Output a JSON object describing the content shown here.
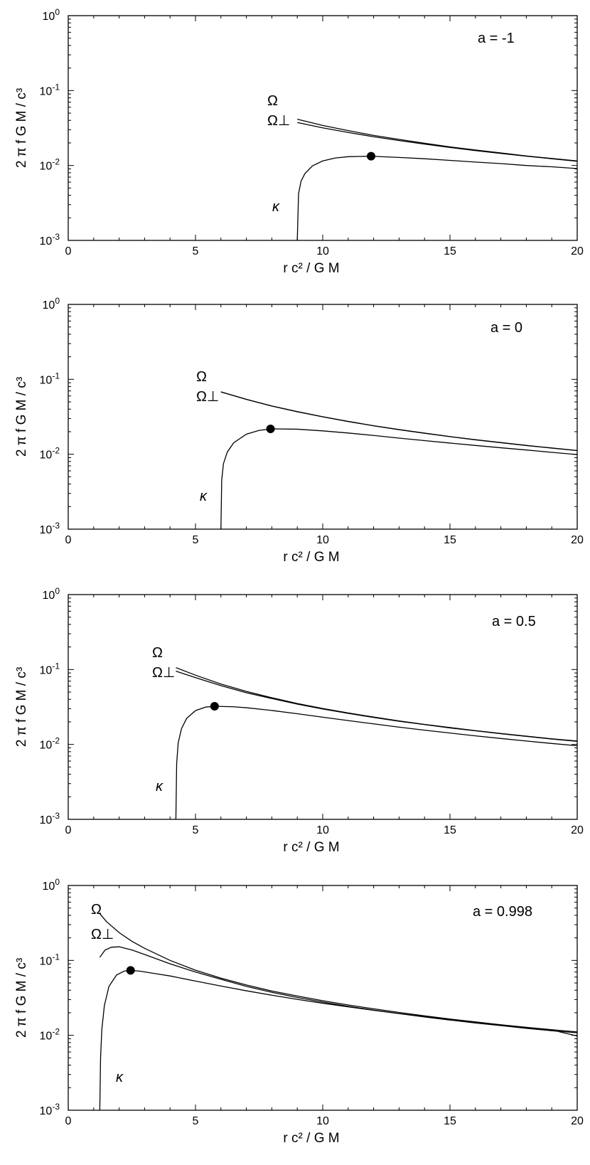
{
  "chart_data": [
    {
      "type": "line",
      "annotation": "a = -1",
      "xlabel": "r c² / G M",
      "ylabel": "2 π f G M / c³",
      "xlim": [
        0,
        20
      ],
      "ylim": [
        0.001,
        1
      ],
      "yscale": "log",
      "x_ticks": [
        0,
        5,
        10,
        15,
        20
      ],
      "y_ticks": [
        0.001,
        0.01,
        0.1,
        1
      ],
      "y_tick_labels": [
        [
          "10",
          "-3"
        ],
        [
          "10",
          "-2"
        ],
        [
          "10",
          "-1"
        ],
        [
          "10",
          "0"
        ]
      ],
      "grid": false,
      "curve_labels": {
        "omega": "Ω",
        "omega_perp": "Ω⊥",
        "kappa": "κ"
      },
      "series": [
        {
          "name": "Ω",
          "x": [
            9.0,
            10,
            11,
            12,
            13,
            14,
            15,
            16,
            17,
            18,
            19,
            20
          ],
          "values": [
            0.0415,
            0.0342,
            0.0292,
            0.0252,
            0.0223,
            0.0198,
            0.0177,
            0.0161,
            0.0147,
            0.0134,
            0.0124,
            0.0115
          ]
        },
        {
          "name": "Ω⊥",
          "x": [
            9.0,
            10,
            11,
            12,
            13,
            14,
            15,
            16,
            17,
            18,
            19,
            20
          ],
          "values": [
            0.0375,
            0.0318,
            0.0276,
            0.0242,
            0.0215,
            0.0193,
            0.0174,
            0.0158,
            0.0145,
            0.0133,
            0.0123,
            0.0114
          ]
        },
        {
          "name": "κ",
          "x": [
            9.0,
            9.05,
            9.15,
            9.3,
            9.6,
            10,
            10.5,
            11,
            11.9,
            13,
            14,
            15,
            16,
            17,
            18,
            19,
            20
          ],
          "values": [
            0.001,
            0.0042,
            0.0062,
            0.0078,
            0.0099,
            0.0115,
            0.0126,
            0.0131,
            0.0133,
            0.0128,
            0.0123,
            0.0117,
            0.0111,
            0.0106,
            0.01,
            0.0096,
            0.0091
          ]
        }
      ],
      "marker": {
        "x": 11.9,
        "y": 0.0133
      }
    },
    {
      "type": "line",
      "annotation": "a = 0",
      "xlabel": "r c² / G M",
      "ylabel": "2 π f G M / c³",
      "xlim": [
        0,
        20
      ],
      "ylim": [
        0.001,
        1
      ],
      "yscale": "log",
      "x_ticks": [
        0,
        5,
        10,
        15,
        20
      ],
      "y_ticks": [
        0.001,
        0.01,
        0.1,
        1
      ],
      "y_tick_labels": [
        [
          "10",
          "-3"
        ],
        [
          "10",
          "-2"
        ],
        [
          "10",
          "-1"
        ],
        [
          "10",
          "0"
        ]
      ],
      "grid": false,
      "curve_labels": {
        "omega": "Ω",
        "omega_perp": "Ω⊥",
        "kappa": "κ"
      },
      "series": [
        {
          "name": "Ω",
          "x": [
            6,
            7,
            8,
            9,
            10,
            11,
            12,
            13,
            14,
            15,
            16,
            17,
            18,
            19,
            20
          ],
          "values": [
            0.068,
            0.054,
            0.044,
            0.037,
            0.0316,
            0.0274,
            0.024,
            0.0213,
            0.0191,
            0.0172,
            0.0156,
            0.0143,
            0.0131,
            0.0121,
            0.0112
          ]
        },
        {
          "name": "Ω⊥",
          "x": [
            6,
            7,
            8,
            9,
            10,
            11,
            12,
            13,
            14,
            15,
            16,
            17,
            18,
            19,
            20
          ],
          "values": [
            0.068,
            0.054,
            0.044,
            0.037,
            0.0316,
            0.0274,
            0.024,
            0.0213,
            0.0191,
            0.0172,
            0.0156,
            0.0143,
            0.0131,
            0.0121,
            0.0112
          ]
        },
        {
          "name": "κ",
          "x": [
            6.0,
            6.03,
            6.1,
            6.25,
            6.5,
            7,
            7.5,
            8,
            9,
            10,
            11,
            12,
            13,
            14,
            15,
            16,
            17,
            18,
            19,
            20
          ],
          "values": [
            0.001,
            0.0045,
            0.0075,
            0.0107,
            0.0142,
            0.0185,
            0.0208,
            0.0218,
            0.0216,
            0.0205,
            0.0192,
            0.0178,
            0.0164,
            0.0152,
            0.0141,
            0.0131,
            0.0122,
            0.0114,
            0.0106,
            0.0099
          ]
        }
      ],
      "marker": {
        "x": 7.95,
        "y": 0.0218
      }
    },
    {
      "type": "line",
      "annotation": "a = 0.5",
      "xlabel": "r c² / G M",
      "ylabel": "2 π f G M / c³",
      "xlim": [
        0,
        20
      ],
      "ylim": [
        0.001,
        1
      ],
      "yscale": "log",
      "x_ticks": [
        0,
        5,
        10,
        15,
        20
      ],
      "y_ticks": [
        0.001,
        0.01,
        0.1,
        1
      ],
      "y_tick_labels": [
        [
          "10",
          "-3"
        ],
        [
          "10",
          "-2"
        ],
        [
          "10",
          "-1"
        ],
        [
          "10",
          "0"
        ]
      ],
      "grid": false,
      "curve_labels": {
        "omega": "Ω",
        "omega_perp": "Ω⊥",
        "kappa": "κ"
      },
      "series": [
        {
          "name": "Ω",
          "x": [
            4.23,
            5,
            6,
            7,
            8,
            9,
            10,
            11,
            12,
            13,
            14,
            15,
            16,
            17,
            18,
            19,
            20
          ],
          "values": [
            0.106,
            0.084,
            0.064,
            0.051,
            0.042,
            0.0352,
            0.0302,
            0.0263,
            0.0232,
            0.0206,
            0.0185,
            0.0168,
            0.0153,
            0.014,
            0.0129,
            0.0119,
            0.0111
          ]
        },
        {
          "name": "Ω⊥",
          "x": [
            4.23,
            5,
            6,
            7,
            8,
            9,
            10,
            11,
            12,
            13,
            14,
            15,
            16,
            17,
            18,
            19,
            20
          ],
          "values": [
            0.095,
            0.078,
            0.061,
            0.049,
            0.041,
            0.0345,
            0.0297,
            0.026,
            0.0229,
            0.0204,
            0.0184,
            0.0166,
            0.0152,
            0.0139,
            0.0128,
            0.0118,
            0.011
          ]
        },
        {
          "name": "κ",
          "x": [
            4.23,
            4.26,
            4.32,
            4.45,
            4.65,
            5,
            5.4,
            5.75,
            6.5,
            7,
            8,
            9,
            10,
            11,
            12,
            13,
            14,
            15,
            16,
            17,
            18,
            19,
            20
          ],
          "values": [
            0.001,
            0.0055,
            0.0105,
            0.0162,
            0.0222,
            0.0283,
            0.0315,
            0.0323,
            0.0318,
            0.0309,
            0.0284,
            0.0257,
            0.0231,
            0.0208,
            0.0188,
            0.017,
            0.0155,
            0.0142,
            0.013,
            0.012,
            0.0111,
            0.0103,
            0.0096
          ]
        }
      ],
      "marker": {
        "x": 5.75,
        "y": 0.0323
      }
    },
    {
      "type": "line",
      "annotation": "a = 0.998",
      "xlabel": "r c² / G M",
      "ylabel": "2 π f G M / c³",
      "xlim": [
        0,
        20
      ],
      "ylim": [
        0.001,
        1
      ],
      "yscale": "log",
      "x_ticks": [
        0,
        5,
        10,
        15,
        20
      ],
      "y_ticks": [
        0.001,
        0.01,
        0.1,
        1
      ],
      "y_tick_labels": [
        [
          "10",
          "-3"
        ],
        [
          "10",
          "-2"
        ],
        [
          "10",
          "-1"
        ],
        [
          "10",
          "0"
        ]
      ],
      "grid": false,
      "curve_labels": {
        "omega": "Ω",
        "omega_perp": "Ω⊥",
        "kappa": "κ"
      },
      "series": [
        {
          "name": "Ω",
          "x": [
            1.24,
            1.5,
            2,
            2.5,
            3,
            4,
            5,
            6,
            7,
            8,
            9,
            10,
            11,
            12,
            13,
            14,
            15,
            16,
            17,
            18,
            19,
            20
          ],
          "values": [
            0.42,
            0.33,
            0.235,
            0.18,
            0.145,
            0.1,
            0.074,
            0.058,
            0.047,
            0.039,
            0.0335,
            0.029,
            0.0254,
            0.0226,
            0.0202,
            0.0182,
            0.0165,
            0.0151,
            0.0138,
            0.0128,
            0.0119,
            0.0111
          ]
        },
        {
          "name": "Ω⊥",
          "x": [
            1.24,
            1.45,
            1.7,
            2.0,
            2.5,
            3,
            4,
            5,
            6,
            7,
            8,
            9,
            10,
            11,
            12,
            13,
            14,
            15,
            16,
            17,
            18,
            19,
            20
          ],
          "values": [
            0.11,
            0.138,
            0.15,
            0.152,
            0.138,
            0.12,
            0.09,
            0.07,
            0.056,
            0.045,
            0.0375,
            0.032,
            0.0278,
            0.0244,
            0.0217,
            0.0195,
            0.0176,
            0.016,
            0.0146,
            0.0135,
            0.0124,
            0.0115,
            0.0108
          ]
        },
        {
          "name": "κ",
          "x": [
            1.24,
            1.27,
            1.32,
            1.42,
            1.6,
            1.9,
            2.2,
            2.45,
            2.8,
            3.5,
            4,
            5,
            6,
            7,
            8,
            9,
            10,
            11,
            12,
            13,
            14,
            15,
            16,
            17,
            18,
            19,
            20
          ],
          "values": [
            0.001,
            0.005,
            0.012,
            0.025,
            0.045,
            0.064,
            0.072,
            0.0735,
            0.072,
            0.066,
            0.062,
            0.053,
            0.0455,
            0.0393,
            0.0343,
            0.0302,
            0.0268,
            0.024,
            0.0216,
            0.0195,
            0.0178,
            0.0163,
            0.015,
            0.0138,
            0.0127,
            0.0118,
            0.0098
          ]
        }
      ],
      "marker": {
        "x": 2.45,
        "y": 0.0735
      }
    }
  ]
}
